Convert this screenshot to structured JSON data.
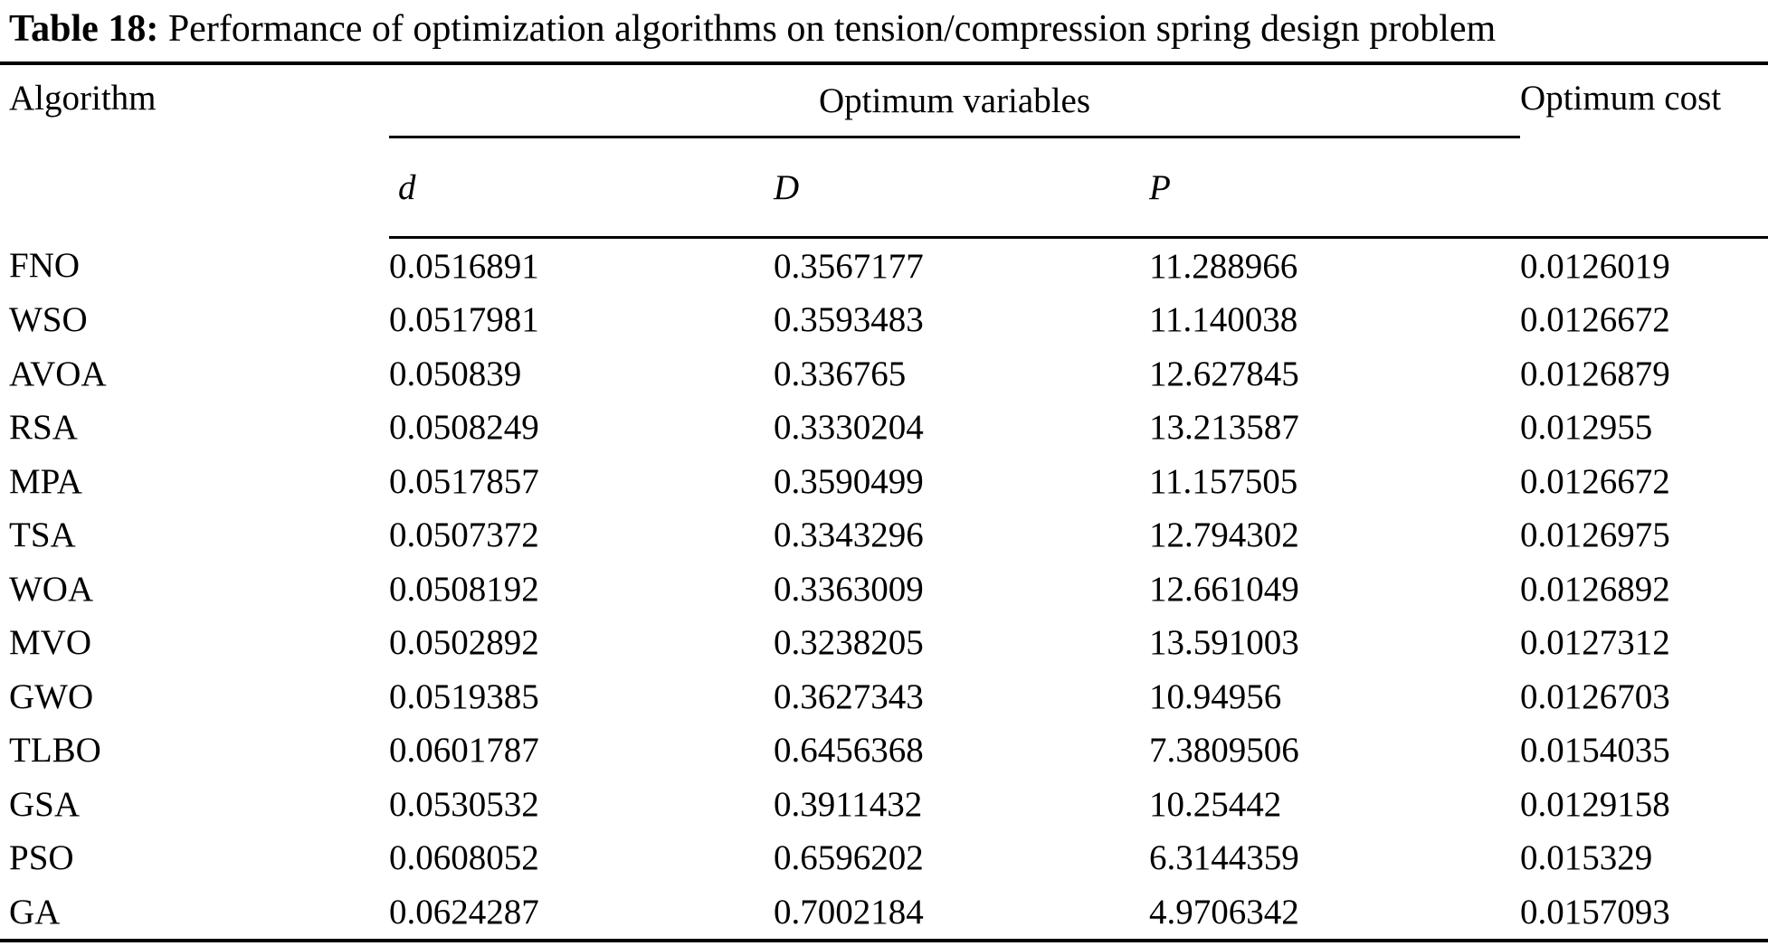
{
  "caption": {
    "label": "Table 18:",
    "text": "Performance of optimization algorithms on tension/compression spring design problem"
  },
  "columns": {
    "algorithm": "Algorithm",
    "group": "Optimum variables",
    "cost": "Optimum cost",
    "vars": [
      "d",
      "D",
      "P"
    ]
  },
  "rows": [
    [
      "FNO",
      "0.0516891",
      "0.3567177",
      "11.288966",
      "0.0126019"
    ],
    [
      "WSO",
      "0.0517981",
      "0.3593483",
      "11.140038",
      "0.0126672"
    ],
    [
      "AVOA",
      "0.050839",
      "0.336765",
      "12.627845",
      "0.0126879"
    ],
    [
      "RSA",
      "0.0508249",
      "0.3330204",
      "13.213587",
      "0.012955"
    ],
    [
      "MPA",
      "0.0517857",
      "0.3590499",
      "11.157505",
      "0.0126672"
    ],
    [
      "TSA",
      "0.0507372",
      "0.3343296",
      "12.794302",
      "0.0126975"
    ],
    [
      "WOA",
      "0.0508192",
      "0.3363009",
      "12.661049",
      "0.0126892"
    ],
    [
      "MVO",
      "0.0502892",
      "0.3238205",
      "13.591003",
      "0.0127312"
    ],
    [
      "GWO",
      "0.0519385",
      "0.3627343",
      "10.94956",
      "0.0126703"
    ],
    [
      "TLBO",
      "0.0601787",
      "0.6456368",
      "7.3809506",
      "0.0154035"
    ],
    [
      "GSA",
      "0.0530532",
      "0.3911432",
      "10.25442",
      "0.0129158"
    ],
    [
      "PSO",
      "0.0608052",
      "0.6596202",
      "6.3144359",
      "0.015329"
    ],
    [
      "GA",
      "0.0624287",
      "0.7002184",
      "4.9706342",
      "0.0157093"
    ]
  ],
  "row_cell_names": [
    "algorithm-cell",
    "d-value-cell",
    "big-d-value-cell",
    "p-value-cell",
    "cost-value-cell"
  ]
}
